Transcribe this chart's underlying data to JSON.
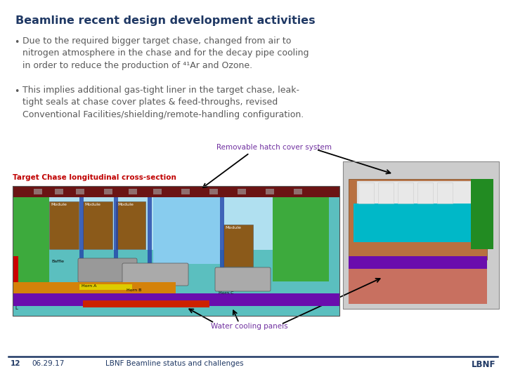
{
  "title": "Beamline recent design development activities",
  "title_color": "#1F3864",
  "title_fontsize": 11.5,
  "bullet1_text": "Due to the required bigger target chase, changed from air to\nnitrogen atmosphere in the chase and for the decay pipe cooling\nin order to reduce the production of ⁴¹Ar and Ozone.",
  "bullet2_text": "This implies additional gas-tight liner in the target chase, leak-\ntight seals at chase cover plates & feed-throughs, revised\nConventional Facilities/shielding/remote-handling configuration.",
  "annotation1": "Removable hatch cover system",
  "annotation2": "Water cooling panels",
  "label_chase": "Target Chase longitudinal cross-section",
  "footer_num": "12",
  "footer_date": "06.29.17",
  "footer_title": "LBNF Beamline status and challenges",
  "footer_brand": "LBNF",
  "bg_color": "#FFFFFF",
  "footer_line_color": "#1F3864",
  "text_color": "#595959",
  "bullet_color": "#595959",
  "label_color": "#C00000",
  "annotation_color": "#7030A0",
  "footer_color": "#1F3864",
  "text_fontsize": 9.0,
  "footer_fontsize": 7.5
}
